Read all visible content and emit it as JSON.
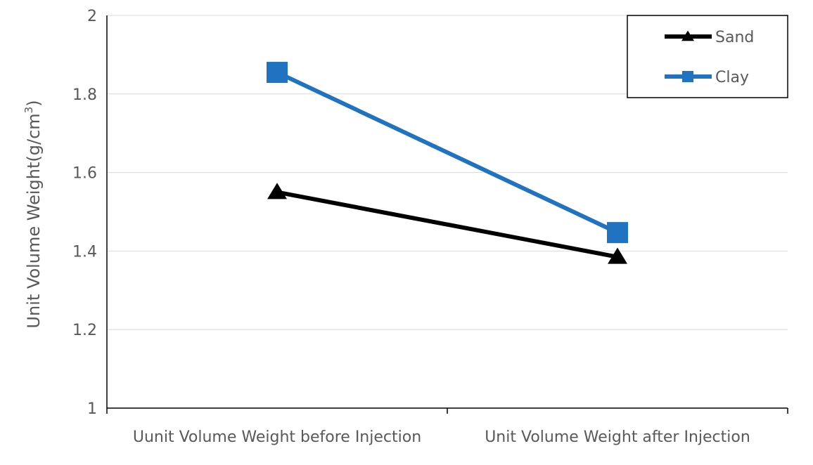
{
  "chart_data": {
    "type": "line",
    "title": "",
    "xlabel": "",
    "ylabel": "Unit Volume Weight(g/cm",
    "ylabel_superscript": "3",
    "ylabel_suffix": ")",
    "categories": [
      "Uunit Volume Weight before Injection",
      "Unit Volume Weight after Injection"
    ],
    "y_ticks": [
      "1",
      "1.2",
      "1.4",
      "1.6",
      "1.8",
      "2"
    ],
    "ylim": [
      1,
      2
    ],
    "grid": true,
    "legend_position": "top-right",
    "series": [
      {
        "name": "Sand",
        "marker": "triangle",
        "color": "#000000",
        "values": [
          1.55,
          1.385
        ]
      },
      {
        "name": "Clay",
        "marker": "square",
        "color": "#1f73c0",
        "values": [
          1.855,
          1.447
        ]
      }
    ]
  }
}
